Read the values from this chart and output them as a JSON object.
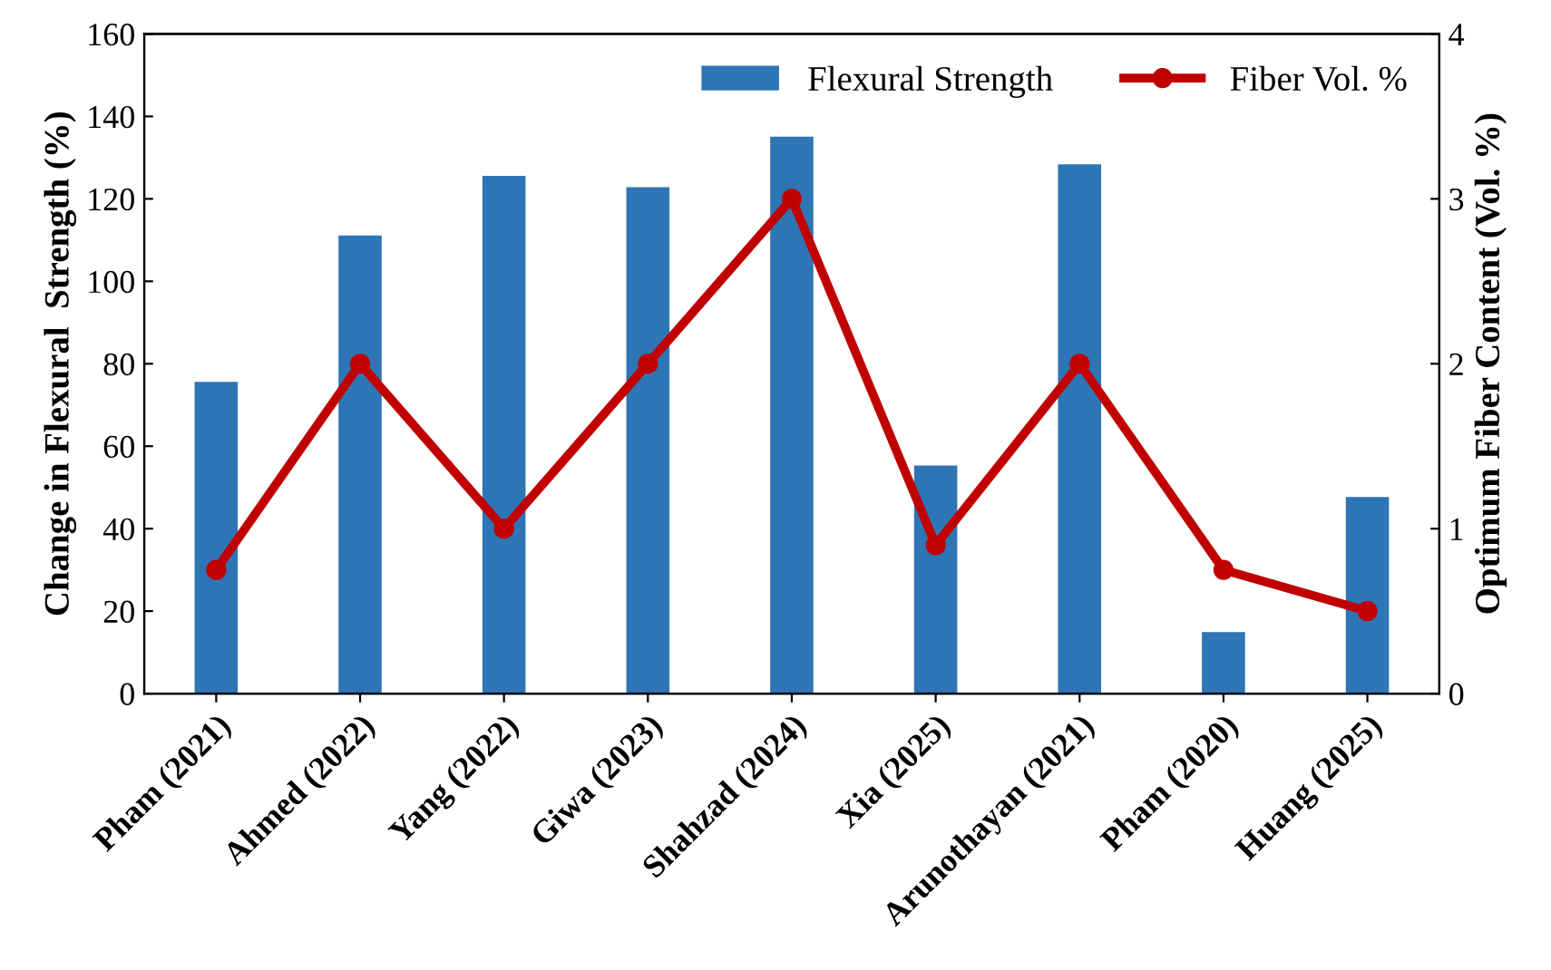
{
  "chart_data": {
    "type": "bar",
    "categories": [
      "Pham (2021)",
      "Ahmed (2022)",
      "Yang (2022)",
      "Giwa (2023)",
      "Shahzad (2024)",
      "Xia (2025)",
      "Arunothayan (2021)",
      "Pham (2020)",
      "Huang (2025)"
    ],
    "series": [
      {
        "name": "Flexural Strength",
        "color": "#2e75b6",
        "values": [
          75.6,
          111.1,
          125.6,
          122.8,
          135.1,
          55.3,
          128.4,
          14.9,
          47.7
        ]
      },
      {
        "name": "Fiber Vol. %",
        "type": "line",
        "axis": "y2",
        "color": "#c00000",
        "marker": "circle",
        "values": [
          0.75,
          2,
          1,
          2,
          3,
          0.9,
          2,
          0.75,
          0.5
        ]
      }
    ],
    "ylabel": "Change in Flexural  Strength (%)",
    "y2label": "Optimum Fiber Content (Vol. %)",
    "ylim": [
      0,
      160
    ],
    "yticks": [
      0,
      20,
      40,
      60,
      80,
      100,
      120,
      140,
      160
    ],
    "y2lim": [
      0,
      4
    ],
    "y2ticks": [
      0,
      1,
      2,
      3,
      4
    ],
    "grid": false,
    "legend": "top right"
  }
}
